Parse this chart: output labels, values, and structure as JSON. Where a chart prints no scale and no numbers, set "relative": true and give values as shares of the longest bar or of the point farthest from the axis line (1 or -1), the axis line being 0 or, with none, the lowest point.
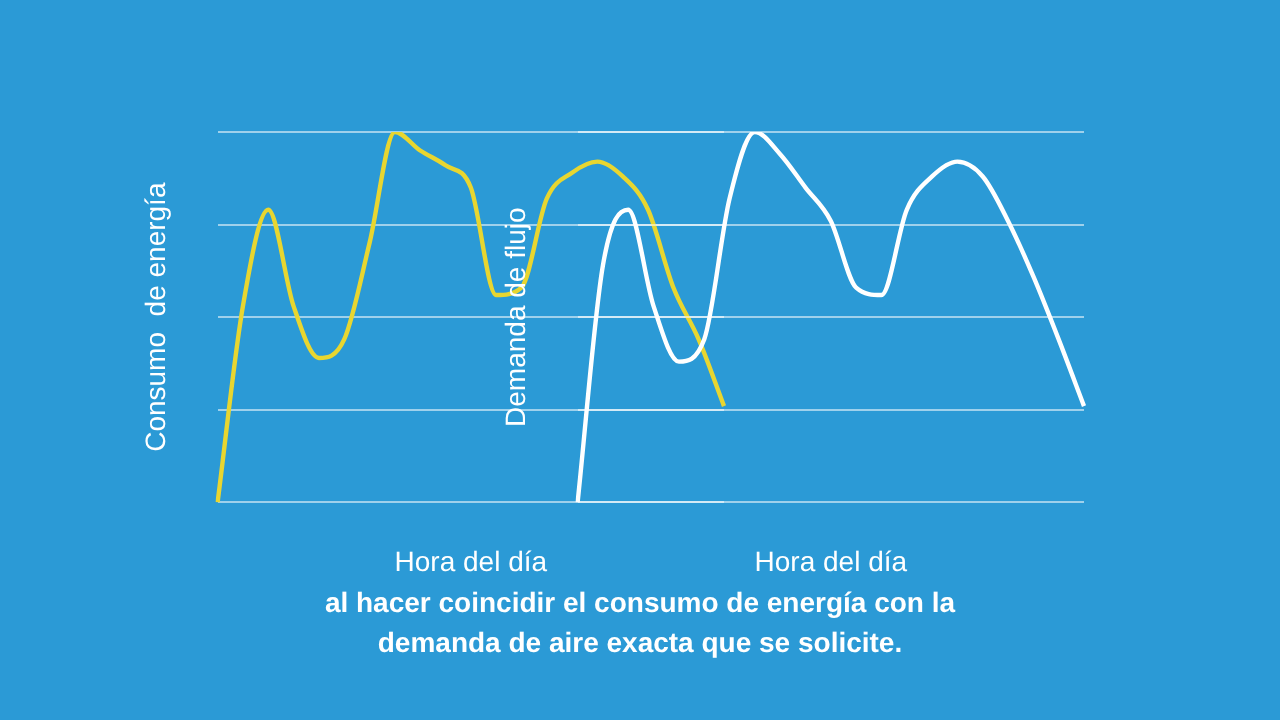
{
  "chart_data": [
    {
      "type": "line",
      "relative": true,
      "grid": "y",
      "xlabel": "Hora del día",
      "ylabel": "Consumo  de energía",
      "categories": [
        null,
        null,
        null,
        null,
        null,
        null,
        null,
        null,
        null,
        null,
        null,
        null,
        null,
        null,
        null,
        null,
        null,
        null,
        null,
        null,
        null
      ],
      "series": [
        {
          "color": "#e8d630",
          "values": [
            0,
            0.53,
            0.79,
            0.53,
            0.39,
            0.44,
            0.7,
            1,
            0.95,
            0.91,
            0.85,
            0.56,
            0.58,
            0.82,
            0.89,
            0.92,
            0.88,
            0.79,
            0.58,
            0.44,
            0.26
          ]
        }
      ],
      "annotations": [
        "al hacer coincidir el consumo de energía con la demanda de aire exacta que se solicite."
      ]
    },
    {
      "type": "line",
      "relative": true,
      "grid": "y",
      "xlabel": "Hora del día",
      "ylabel": "Demanda de flujo",
      "categories": [
        null,
        null,
        null,
        null,
        null,
        null,
        null,
        null,
        null,
        null,
        null,
        null,
        null,
        null,
        null,
        null,
        null,
        null,
        null,
        null,
        null
      ],
      "series": [
        {
          "color": "#ffffff",
          "values": [
            0,
            0.64,
            0.79,
            0.53,
            0.38,
            0.44,
            0.82,
            1,
            0.94,
            0.85,
            0.76,
            0.58,
            0.56,
            0.79,
            0.88,
            0.92,
            0.88,
            0.76,
            0.61,
            0.44,
            0.26
          ]
        }
      ]
    }
  ]
}
